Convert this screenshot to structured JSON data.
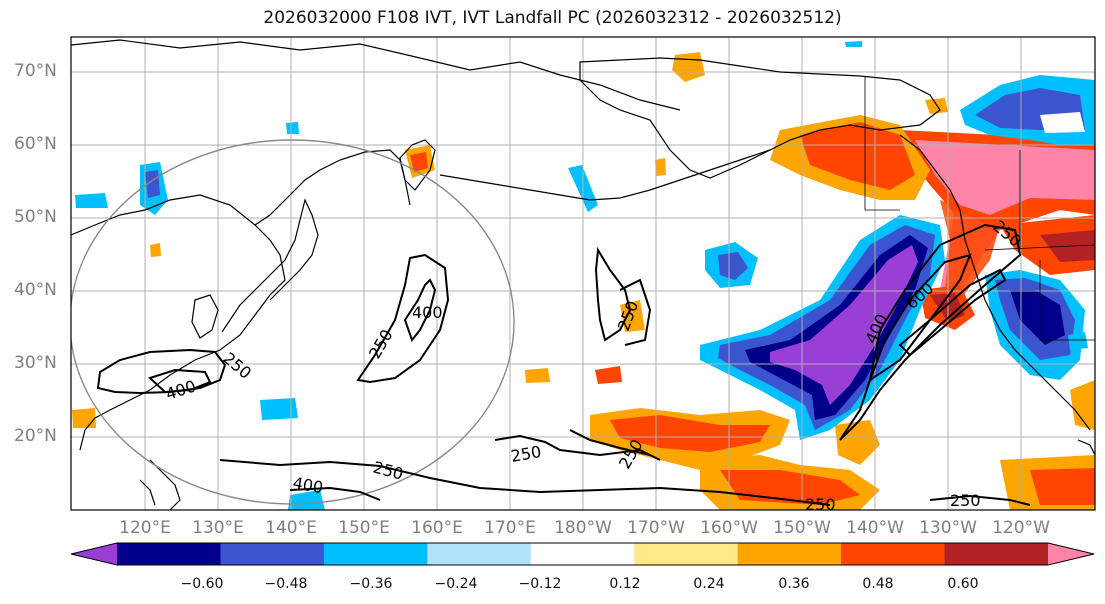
{
  "title": "2026032000 F108 IVT, IVT Landfall PC (2026032312 - 2026032512)",
  "colors": {
    "neg_060": "#9a3fd6",
    "neg_048": "#00008b",
    "neg_036": "#3b55d0",
    "neg_024": "#00bfff",
    "neg_012": "#b3e2fb",
    "neutral": "#ffffff",
    "pos_012": "#ffe98a",
    "pos_024": "#ffa500",
    "pos_036": "#ff4500",
    "pos_048": "#b22222",
    "pos_060": "#ff85a8",
    "contour": "#000000",
    "gridline": "#b0b0b0",
    "circle": "#888888"
  },
  "lat_labels": [
    "70°N",
    "60°N",
    "50°N",
    "40°N",
    "30°N",
    "20°N"
  ],
  "lon_labels": [
    "120°E",
    "130°E",
    "140°E",
    "150°E",
    "160°E",
    "170°E",
    "180°W",
    "170°W",
    "160°W",
    "150°W",
    "140°W",
    "130°W",
    "120°W"
  ],
  "contour_labels": [
    "400",
    "250",
    "400",
    "250",
    "250",
    "250",
    "250",
    "400",
    "250",
    "600",
    "250",
    "250",
    "250",
    "400"
  ],
  "colorbar": {
    "ticks": [
      "−0.60",
      "−0.48",
      "−0.36",
      "−0.24",
      "−0.12",
      "0.12",
      "0.24",
      "0.36",
      "0.48",
      "0.60"
    ],
    "bins": [
      "neg_060",
      "neg_048",
      "neg_036",
      "neg_024",
      "neg_012",
      "neutral",
      "pos_012",
      "pos_024",
      "pos_036",
      "pos_048",
      "pos_060"
    ]
  }
}
